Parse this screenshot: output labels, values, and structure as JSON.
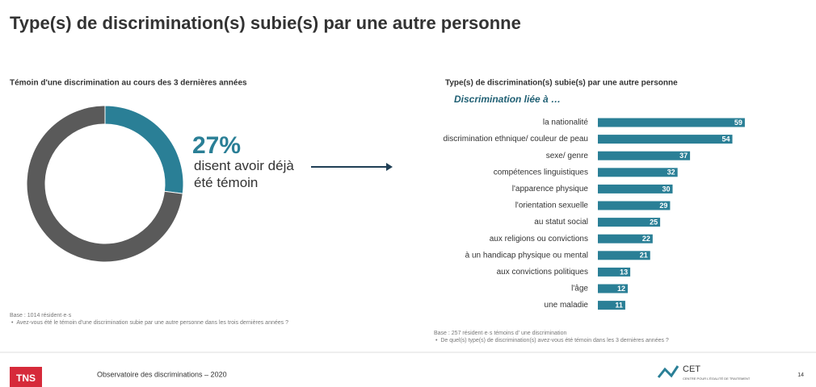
{
  "title": "Type(s) de discrimination(s) subie(s) par une autre personne",
  "footer": {
    "source": "Observatoire des discriminations – 2020",
    "brand": "TNS",
    "logo": "CET",
    "logo_subtitle": "CENTRE POUR L'ÉGALITÉ DE TRAITEMENT",
    "page": "14"
  },
  "notes": [
    {
      "base": "Base : 1014 résident·e·s",
      "question": "Avez-vous été le témoin d'une discrimination subie par une autre personne dans les trois dernières années ?"
    },
    {
      "base": "Base : 257 résident·e·s témoins d' une discrimination",
      "question": "De quel(s) type(s) de discrimination(s) avez-vous été témoin dans les 3 dernières années ?"
    }
  ],
  "chart_data": [
    {
      "type": "pie",
      "title": "Témoin d'une discrimination au cours des 3 dernières années",
      "values": [
        27,
        73
      ],
      "value_labels": [
        "27%",
        null
      ],
      "colors": [
        "#2a7f96",
        "#5a5a5a"
      ],
      "donut": true,
      "annotation": "disent avoir déjà été témoin"
    },
    {
      "type": "barh",
      "title": "Type(s) de discrimination(s) subie(s) par une autre personne",
      "subtitle": "Discrimination liée à …",
      "categories": [
        "la nationalité",
        "discrimination ethnique/ couleur de peau",
        "sexe/ genre",
        "compétences linguistiques",
        "l'apparence physique",
        "l'orientation sexuelle",
        "au statut social",
        "aux religions ou convictions",
        "à un handicap physique ou mental",
        "aux convictions politiques",
        "l'âge",
        "une maladie"
      ],
      "values": [
        59,
        54,
        37,
        32,
        30,
        29,
        25,
        22,
        21,
        13,
        12,
        11
      ],
      "color": "#2a7f96",
      "xlim": [
        0,
        60
      ]
    }
  ]
}
